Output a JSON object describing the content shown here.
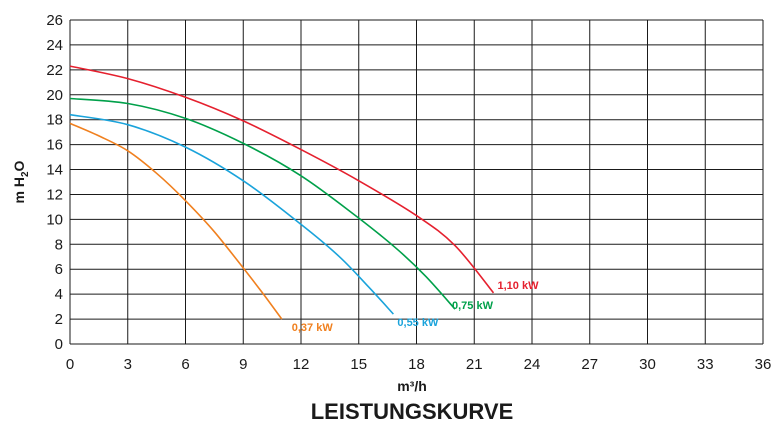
{
  "chart_data": {
    "type": "line",
    "title": "LEISTUNGSKURVE",
    "xlabel": "m³/h",
    "ylabel_main": "m H",
    "ylabel_sub": "2",
    "ylabel_tail": "O",
    "xlim": [
      0,
      36
    ],
    "ylim": [
      0,
      26
    ],
    "x_ticks": [
      "0",
      "3",
      "6",
      "9",
      "12",
      "15",
      "18",
      "21",
      "24",
      "27",
      "30",
      "33",
      "36"
    ],
    "y_ticks": [
      "0",
      "2",
      "4",
      "6",
      "8",
      "10",
      "12",
      "14",
      "16",
      "18",
      "20",
      "22",
      "24",
      "26"
    ],
    "grid": true,
    "series": [
      {
        "name": "1,10 kW",
        "color": "#e5202e",
        "points": [
          [
            0,
            22.3
          ],
          [
            3,
            21.3
          ],
          [
            6,
            19.8
          ],
          [
            9,
            17.9
          ],
          [
            12,
            15.6
          ],
          [
            15,
            13.1
          ],
          [
            18,
            10.3
          ],
          [
            20,
            7.9
          ],
          [
            22,
            4.1
          ]
        ]
      },
      {
        "name": "0,75 kW",
        "color": "#00a04a",
        "points": [
          [
            0,
            19.7
          ],
          [
            3,
            19.3
          ],
          [
            6,
            18.1
          ],
          [
            9,
            16.1
          ],
          [
            12,
            13.5
          ],
          [
            15,
            10.1
          ],
          [
            17,
            7.6
          ],
          [
            18.5,
            5.4
          ],
          [
            20,
            2.8
          ]
        ]
      },
      {
        "name": "0,55 kW",
        "color": "#1aa3db",
        "points": [
          [
            0,
            18.4
          ],
          [
            3,
            17.6
          ],
          [
            6,
            15.8
          ],
          [
            9,
            13.1
          ],
          [
            12,
            9.6
          ],
          [
            14,
            7.0
          ],
          [
            15.5,
            4.6
          ],
          [
            16.8,
            2.4
          ]
        ]
      },
      {
        "name": "0,37 kW",
        "color": "#f0801f",
        "points": [
          [
            0,
            17.7
          ],
          [
            1.5,
            16.7
          ],
          [
            3,
            15.5
          ],
          [
            4.5,
            13.7
          ],
          [
            6,
            11.5
          ],
          [
            7.5,
            9.0
          ],
          [
            9,
            6.1
          ],
          [
            10,
            4.1
          ],
          [
            11,
            2.0
          ]
        ]
      }
    ]
  }
}
